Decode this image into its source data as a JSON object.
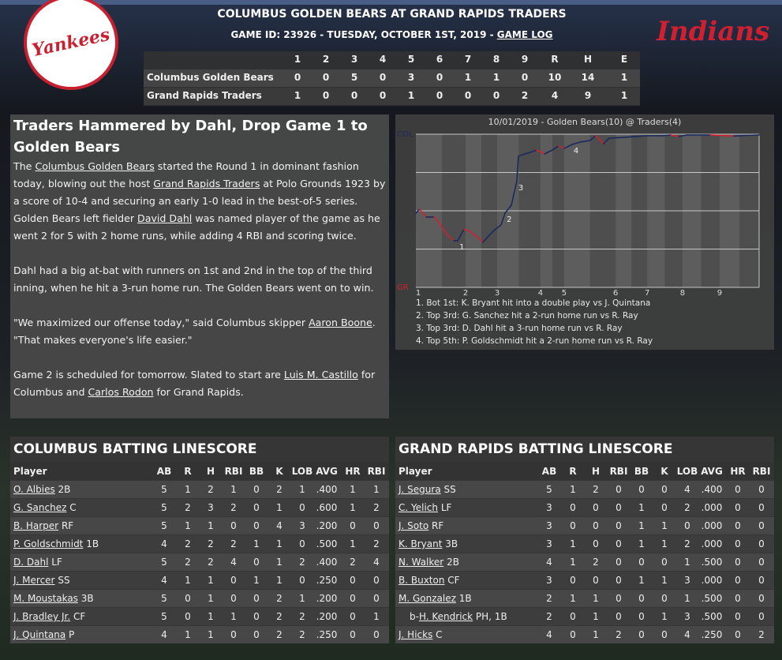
{
  "header": {
    "title": "COLUMBUS GOLDEN BEARS AT GRAND RAPIDS TRADERS",
    "subtitle": "GAME ID: 23926 - TUESDAY, OCTOBER 1ST, 2019 - ",
    "link": "GAME LOG"
  },
  "logos": {
    "away": "Yankees",
    "home": "Indians"
  },
  "linescore": {
    "columns": [
      "1",
      "2",
      "3",
      "4",
      "5",
      "6",
      "7",
      "8",
      "9",
      "R",
      "H",
      "E"
    ],
    "rows": [
      {
        "team": "Columbus Golden Bears",
        "values": [
          0,
          0,
          5,
          0,
          3,
          0,
          1,
          1,
          0,
          10,
          14,
          1
        ]
      },
      {
        "team": "Grand Rapids Traders",
        "values": [
          1,
          0,
          0,
          0,
          1,
          0,
          0,
          0,
          2,
          4,
          9,
          1
        ]
      }
    ]
  },
  "story": {
    "headline": "Traders Hammered by Dahl, Drop Game 1 to Golden Bears",
    "paragraphs": [
      [
        "The ",
        {
          "link": "Columbus Golden Bears"
        },
        " started the Round 1 in dominant fashion today, blowing out the host ",
        {
          "link": "Grand Rapids Traders"
        },
        " at Polo Grounds 1923 by a score of 10-4 and securing an early 1-0 lead in the best-of-5 series. Golden Bears left fielder ",
        {
          "link": "David Dahl"
        },
        " was named player of the game as he went 2 for 5 with 2 home runs, while adding 4 RBI and scoring twice."
      ],
      [
        "Dahl had a big at-bat with runners on 1st and 2nd in the top of the third inning, when he hit a 3-run home run. The Golden Bears went on to win."
      ],
      [
        "\"We maximized our offense today,\" said Columbus skipper ",
        {
          "link": "Aaron Boone"
        },
        ". \"That makes everyone's life easier.\""
      ],
      [
        "Game 2 is scheduled for tomorrow. Slated to start are ",
        {
          "link": "Luis M. Castillo"
        },
        " for Columbus and ",
        {
          "link": "Carlos Rodon"
        },
        " for Grand Rapids."
      ]
    ]
  },
  "chart_data": {
    "type": "line",
    "title": "10/01/2019 - Golden Bears(10) @ Traders(4)",
    "x": [
      0,
      1.1,
      3.0,
      5.3,
      6.4,
      8.7,
      11.0,
      12.2,
      14.0,
      15.6,
      17.9,
      19.5,
      21.4,
      23.2,
      24.8,
      26.0,
      27.8,
      29.4,
      29.9,
      31.7,
      33.3,
      35.2,
      37.5,
      39.8,
      41.6,
      43.2,
      45.5,
      47.8,
      50.8,
      52.4,
      54.7,
      56.3,
      60.5,
      63.9,
      67.4,
      72.0,
      74.3,
      76.6,
      78.9,
      85.8,
      92.6,
      96.1,
      100
    ],
    "series": [
      {
        "color": "#1b2a5c",
        "down_color": "#d0202e",
        "values": [
          48.5,
          51.0,
          45.9,
          45.9,
          43.3,
          35.6,
          30.4,
          30.4,
          38.1,
          36.6,
          33.0,
          29.4,
          34.0,
          38.1,
          40.7,
          48.5,
          53.6,
          69.1,
          85.6,
          87.1,
          88.1,
          89.7,
          87.1,
          89.7,
          92.3,
          90.7,
          93.3,
          94.8,
          95.9,
          99.0,
          93.8,
          97.4,
          97.9,
          98.5,
          99.0,
          99.0,
          99.5,
          98.5,
          99.5,
          99.5,
          98.8,
          99.2,
          99.5
        ]
      }
    ],
    "xlim": [
      0,
      100
    ],
    "ylim": [
      0,
      100
    ],
    "xticks": [
      {
        "value": 0.7,
        "label": "1"
      },
      {
        "value": 14.5,
        "label": "2"
      },
      {
        "value": 23.7,
        "label": "3"
      },
      {
        "value": 36.3,
        "label": "4"
      },
      {
        "value": 43.2,
        "label": "5"
      },
      {
        "value": 58.2,
        "label": "6"
      },
      {
        "value": 67.4,
        "label": "7"
      },
      {
        "value": 77.7,
        "label": "8"
      },
      {
        "value": 88.5,
        "label": "9"
      }
    ],
    "yticks": [
      {
        "value": 0,
        "label": "GR"
      },
      {
        "value": 100,
        "label": "COL"
      }
    ],
    "grid_lines": [
      25,
      50,
      75
    ],
    "annotations": [
      {
        "label": "1",
        "x": 12.2,
        "y": 30.4
      },
      {
        "label": "2",
        "x": 26.0,
        "y": 48.5
      },
      {
        "label": "3",
        "x": 29.4,
        "y": 69.1
      },
      {
        "label": "4",
        "x": 45.5,
        "y": 93.3
      }
    ],
    "events": [
      "1. Bot 1st: K. Bryant hit into a double play vs J. Quintana",
      "2. Top 3rd: G. Sanchez hit a 2-run home run vs R. Ray",
      "3. Top 3rd: D. Dahl hit a 3-run home run vs R. Ray",
      "4. Top 5th: P. Goldschmidt hit a 2-run home run vs R. Ray"
    ]
  },
  "batting": [
    {
      "title": "COLUMBUS BATTING LINESCORE",
      "columns": [
        "Player",
        "AB",
        "R",
        "H",
        "RBI",
        "BB",
        "K",
        "LOB",
        "AVG",
        "HR",
        "RBI"
      ],
      "rows": [
        {
          "name": "O. Albies",
          "pos": "2B",
          "stats": [
            5,
            1,
            2,
            1,
            0,
            2,
            1,
            ".400",
            1,
            1
          ]
        },
        {
          "name": "G. Sanchez",
          "pos": "C",
          "stats": [
            5,
            2,
            3,
            2,
            0,
            1,
            0,
            ".600",
            1,
            2
          ]
        },
        {
          "name": "B. Harper",
          "pos": "RF",
          "stats": [
            5,
            1,
            1,
            0,
            0,
            4,
            3,
            ".200",
            0,
            0
          ]
        },
        {
          "name": "P. Goldschmidt",
          "pos": "1B",
          "stats": [
            4,
            2,
            2,
            2,
            1,
            1,
            0,
            ".500",
            1,
            2
          ]
        },
        {
          "name": "D. Dahl",
          "pos": "LF",
          "stats": [
            5,
            2,
            2,
            4,
            0,
            1,
            2,
            ".400",
            2,
            4
          ]
        },
        {
          "name": "J. Mercer",
          "pos": "SS",
          "stats": [
            4,
            1,
            1,
            0,
            1,
            1,
            0,
            ".250",
            0,
            0
          ]
        },
        {
          "name": "M. Moustakas",
          "pos": "3B",
          "stats": [
            5,
            0,
            1,
            0,
            0,
            2,
            1,
            ".200",
            0,
            0
          ]
        },
        {
          "name": "J. Bradley Jr.",
          "pos": "CF",
          "stats": [
            5,
            0,
            1,
            1,
            0,
            2,
            2,
            ".200",
            0,
            1
          ]
        },
        {
          "name": "J. Quintana",
          "pos": "P",
          "stats": [
            4,
            1,
            1,
            0,
            0,
            2,
            2,
            ".250",
            0,
            0
          ]
        }
      ]
    },
    {
      "title": "GRAND RAPIDS BATTING LINESCORE",
      "columns": [
        "Player",
        "AB",
        "R",
        "H",
        "RBI",
        "BB",
        "K",
        "LOB",
        "AVG",
        "HR",
        "RBI"
      ],
      "rows": [
        {
          "name": "J. Segura",
          "pos": "SS",
          "stats": [
            5,
            1,
            2,
            0,
            0,
            0,
            4,
            ".400",
            0,
            0
          ]
        },
        {
          "name": "C. Yelich",
          "pos": "LF",
          "stats": [
            3,
            0,
            0,
            0,
            1,
            0,
            2,
            ".000",
            0,
            0
          ]
        },
        {
          "name": "J. Soto",
          "pos": "RF",
          "stats": [
            3,
            0,
            0,
            0,
            1,
            1,
            0,
            ".000",
            0,
            0
          ]
        },
        {
          "name": "K. Bryant",
          "pos": "3B",
          "stats": [
            3,
            1,
            0,
            0,
            1,
            1,
            2,
            ".000",
            0,
            0
          ]
        },
        {
          "name": "N. Walker",
          "pos": "2B",
          "stats": [
            4,
            1,
            2,
            0,
            0,
            0,
            1,
            ".500",
            0,
            0
          ]
        },
        {
          "name": "B. Buxton",
          "pos": "CF",
          "stats": [
            3,
            0,
            0,
            0,
            1,
            1,
            3,
            ".000",
            0,
            0
          ]
        },
        {
          "name": "M. Gonzalez",
          "pos": "1B",
          "stats": [
            2,
            1,
            1,
            0,
            0,
            0,
            1,
            ".500",
            0,
            0
          ]
        },
        {
          "prefix": "b-",
          "name": "H. Kendrick",
          "pos": "PH, 1B",
          "stats": [
            2,
            0,
            1,
            0,
            0,
            1,
            3,
            ".500",
            0,
            0
          ]
        },
        {
          "name": "J. Hicks",
          "pos": "C",
          "stats": [
            4,
            0,
            1,
            2,
            0,
            0,
            4,
            ".250",
            0,
            2
          ]
        }
      ]
    }
  ]
}
